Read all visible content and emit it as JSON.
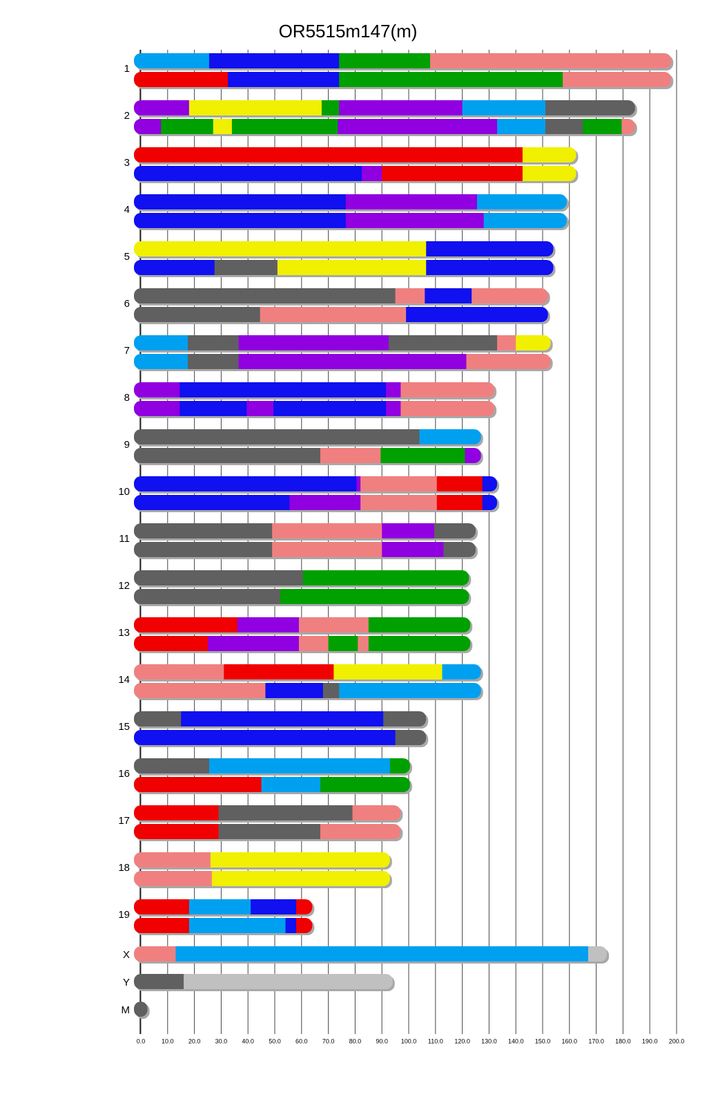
{
  "chart_data": {
    "type": "ideogram",
    "title": "OR5515m147(m)",
    "xlim": [
      0,
      200
    ],
    "xticks": [
      {
        "value": 0,
        "label": "0.0"
      },
      {
        "value": 10,
        "label": "10.0"
      },
      {
        "value": 20,
        "label": "20.0"
      },
      {
        "value": 30,
        "label": "30.0"
      },
      {
        "value": 40,
        "label": "40.0"
      },
      {
        "value": 50,
        "label": "50.0"
      },
      {
        "value": 60,
        "label": "60.0"
      },
      {
        "value": 70,
        "label": "70.0"
      },
      {
        "value": 80,
        "label": "80.0"
      },
      {
        "value": 90,
        "label": "90.0"
      },
      {
        "value": 100,
        "label": "100.0"
      },
      {
        "value": 110,
        "label": "110.0"
      },
      {
        "value": 120,
        "label": "120.0"
      },
      {
        "value": 130,
        "label": "130.0"
      },
      {
        "value": 140,
        "label": "140.0"
      },
      {
        "value": 150,
        "label": "150.0"
      },
      {
        "value": 160,
        "label": "160.0"
      },
      {
        "value": 170,
        "label": "170.0"
      },
      {
        "value": 180,
        "label": "180.0"
      },
      {
        "value": 190,
        "label": "190.0"
      },
      {
        "value": 200,
        "label": "200.0"
      }
    ],
    "grid": true,
    "chromosomes": [
      {
        "name": "1",
        "tracks": [
          [
            {
              "color": "#00a0f0",
              "length": 25.5
            },
            {
              "color": "#1010f0",
              "length": 48.5
            },
            {
              "color": "#00a000",
              "length": 34
            },
            {
              "color": "#f08080",
              "length": 90
            }
          ],
          [
            {
              "color": "#f00000",
              "length": 32.5
            },
            {
              "color": "#1010f0",
              "length": 41.5
            },
            {
              "color": "#00a000",
              "length": 83.5
            },
            {
              "color": "#f08080",
              "length": 40.5
            }
          ]
        ]
      },
      {
        "name": "2",
        "tracks": [
          [
            {
              "color": "#9000e0",
              "length": 18
            },
            {
              "color": "#f0f000",
              "length": 49.5
            },
            {
              "color": "#00a000",
              "length": 6.5
            },
            {
              "color": "#9000e0",
              "length": 46
            },
            {
              "color": "#00a0f0",
              "length": 31
            },
            {
              "color": "#606060",
              "length": 33.5
            }
          ],
          [
            {
              "color": "#9000e0",
              "length": 7.5
            },
            {
              "color": "#00a000",
              "length": 19.5
            },
            {
              "color": "#f0f000",
              "length": 7
            },
            {
              "color": "#00a000",
              "length": 39.5
            },
            {
              "color": "#9000e0",
              "length": 59.5
            },
            {
              "color": "#00a0f0",
              "length": 18
            },
            {
              "color": "#606060",
              "length": 14
            },
            {
              "color": "#00a000",
              "length": 14.5
            },
            {
              "color": "#f08080",
              "length": 5
            }
          ]
        ]
      },
      {
        "name": "3",
        "tracks": [
          [
            {
              "color": "#f00000",
              "length": 142.5
            },
            {
              "color": "#f0f000",
              "length": 20
            }
          ],
          [
            {
              "color": "#1010f0",
              "length": 82.5
            },
            {
              "color": "#9000e0",
              "length": 7.5
            },
            {
              "color": "#f00000",
              "length": 52.5
            },
            {
              "color": "#f0f000",
              "length": 20
            }
          ]
        ]
      },
      {
        "name": "4",
        "tracks": [
          [
            {
              "color": "#1010f0",
              "length": 76.5
            },
            {
              "color": "#9000e0",
              "length": 49
            },
            {
              "color": "#00a0f0",
              "length": 33.5
            }
          ],
          [
            {
              "color": "#1010f0",
              "length": 76.5
            },
            {
              "color": "#9000e0",
              "length": 51.5
            },
            {
              "color": "#00a0f0",
              "length": 31
            }
          ]
        ]
      },
      {
        "name": "5",
        "tracks": [
          [
            {
              "color": "#f0f000",
              "length": 106.5
            },
            {
              "color": "#1010f0",
              "length": 47.5
            }
          ],
          [
            {
              "color": "#1010f0",
              "length": 27.5
            },
            {
              "color": "#606060",
              "length": 23.5
            },
            {
              "color": "#f0f000",
              "length": 55.5
            },
            {
              "color": "#1010f0",
              "length": 47.5
            }
          ]
        ]
      },
      {
        "name": "6",
        "tracks": [
          [
            {
              "color": "#606060",
              "length": 95
            },
            {
              "color": "#f08080",
              "length": 11
            },
            {
              "color": "#1010f0",
              "length": 17.5
            },
            {
              "color": "#f08080",
              "length": 28.5
            }
          ],
          [
            {
              "color": "#606060",
              "length": 44.5
            },
            {
              "color": "#f08080",
              "length": 54.5
            },
            {
              "color": "#1010f0",
              "length": 53
            }
          ]
        ]
      },
      {
        "name": "7",
        "tracks": [
          [
            {
              "color": "#00a0f0",
              "length": 17.5
            },
            {
              "color": "#606060",
              "length": 19
            },
            {
              "color": "#9000e0",
              "length": 56
            },
            {
              "color": "#606060",
              "length": 40.5
            },
            {
              "color": "#f08080",
              "length": 7
            },
            {
              "color": "#f0f000",
              "length": 13
            }
          ],
          [
            {
              "color": "#00a0f0",
              "length": 17.5
            },
            {
              "color": "#606060",
              "length": 19
            },
            {
              "color": "#9000e0",
              "length": 85
            },
            {
              "color": "#f08080",
              "length": 31.5
            }
          ]
        ]
      },
      {
        "name": "8",
        "tracks": [
          [
            {
              "color": "#9000e0",
              "length": 14.5
            },
            {
              "color": "#1010f0",
              "length": 77
            },
            {
              "color": "#9000e0",
              "length": 5.5
            },
            {
              "color": "#f08080",
              "length": 35
            }
          ],
          [
            {
              "color": "#9000e0",
              "length": 14.5
            },
            {
              "color": "#1010f0",
              "length": 25
            },
            {
              "color": "#9000e0",
              "length": 10
            },
            {
              "color": "#1010f0",
              "length": 42
            },
            {
              "color": "#9000e0",
              "length": 5.5
            },
            {
              "color": "#f08080",
              "length": 35
            }
          ]
        ]
      },
      {
        "name": "9",
        "tracks": [
          [
            {
              "color": "#606060",
              "length": 104
            },
            {
              "color": "#00a0f0",
              "length": 23
            }
          ],
          [
            {
              "color": "#606060",
              "length": 67
            },
            {
              "color": "#f08080",
              "length": 22.5
            },
            {
              "color": "#00a000",
              "length": 31.5
            },
            {
              "color": "#9000e0",
              "length": 6
            }
          ]
        ]
      },
      {
        "name": "10",
        "tracks": [
          [
            {
              "color": "#1010f0",
              "length": 80.5
            },
            {
              "color": "#9000e0",
              "length": 1.5
            },
            {
              "color": "#f08080",
              "length": 28.5
            },
            {
              "color": "#f00000",
              "length": 17
            },
            {
              "color": "#1010f0",
              "length": 5.5
            }
          ],
          [
            {
              "color": "#1010f0",
              "length": 55.5
            },
            {
              "color": "#9000e0",
              "length": 26.5
            },
            {
              "color": "#f08080",
              "length": 28.5
            },
            {
              "color": "#f00000",
              "length": 17
            },
            {
              "color": "#1010f0",
              "length": 5.5
            }
          ]
        ]
      },
      {
        "name": "11",
        "tracks": [
          [
            {
              "color": "#606060",
              "length": 49
            },
            {
              "color": "#f08080",
              "length": 41
            },
            {
              "color": "#9000e0",
              "length": 19.5
            },
            {
              "color": "#606060",
              "length": 15.5
            }
          ],
          [
            {
              "color": "#606060",
              "length": 49
            },
            {
              "color": "#f08080",
              "length": 41
            },
            {
              "color": "#9000e0",
              "length": 23
            },
            {
              "color": "#606060",
              "length": 12
            }
          ]
        ]
      },
      {
        "name": "12",
        "tracks": [
          [
            {
              "color": "#606060",
              "length": 60.5
            },
            {
              "color": "#00a000",
              "length": 62
            }
          ],
          [
            {
              "color": "#606060",
              "length": 52
            },
            {
              "color": "#00a000",
              "length": 70.5
            }
          ]
        ]
      },
      {
        "name": "13",
        "tracks": [
          [
            {
              "color": "#f00000",
              "length": 36
            },
            {
              "color": "#9000e0",
              "length": 23
            },
            {
              "color": "#f08080",
              "length": 26
            },
            {
              "color": "#00a000",
              "length": 38
            }
          ],
          [
            {
              "color": "#f00000",
              "length": 25
            },
            {
              "color": "#9000e0",
              "length": 34
            },
            {
              "color": "#f08080",
              "length": 11
            },
            {
              "color": "#00a000",
              "length": 11
            },
            {
              "color": "#f08080",
              "length": 4
            },
            {
              "color": "#00a000",
              "length": 38
            }
          ]
        ]
      },
      {
        "name": "14",
        "tracks": [
          [
            {
              "color": "#f08080",
              "length": 31
            },
            {
              "color": "#f00000",
              "length": 41
            },
            {
              "color": "#f0f000",
              "length": 40.5
            },
            {
              "color": "#00a0f0",
              "length": 14.5
            }
          ],
          [
            {
              "color": "#f08080",
              "length": 46.5
            },
            {
              "color": "#1010f0",
              "length": 21.5
            },
            {
              "color": "#606060",
              "length": 6
            },
            {
              "color": "#00a0f0",
              "length": 53
            }
          ]
        ]
      },
      {
        "name": "15",
        "tracks": [
          [
            {
              "color": "#606060",
              "length": 15
            },
            {
              "color": "#1010f0",
              "length": 75.5
            },
            {
              "color": "#606060",
              "length": 16
            }
          ],
          [
            {
              "color": "#1010f0",
              "length": 95
            },
            {
              "color": "#606060",
              "length": 11.5
            }
          ]
        ]
      },
      {
        "name": "16",
        "tracks": [
          [
            {
              "color": "#606060",
              "length": 25.5
            },
            {
              "color": "#00a0f0",
              "length": 67.5
            },
            {
              "color": "#00a000",
              "length": 7.5
            }
          ],
          [
            {
              "color": "#f00000",
              "length": 45
            },
            {
              "color": "#00a0f0",
              "length": 22
            },
            {
              "color": "#00a000",
              "length": 33.5
            }
          ]
        ]
      },
      {
        "name": "17",
        "tracks": [
          [
            {
              "color": "#f00000",
              "length": 29
            },
            {
              "color": "#606060",
              "length": 50
            },
            {
              "color": "#f08080",
              "length": 18
            }
          ],
          [
            {
              "color": "#f00000",
              "length": 29
            },
            {
              "color": "#606060",
              "length": 38
            },
            {
              "color": "#f08080",
              "length": 30
            }
          ]
        ]
      },
      {
        "name": "18",
        "tracks": [
          [
            {
              "color": "#f08080",
              "length": 26
            },
            {
              "color": "#f0f000",
              "length": 67
            }
          ],
          [
            {
              "color": "#f08080",
              "length": 26.5
            },
            {
              "color": "#f0f000",
              "length": 66.5
            }
          ]
        ]
      },
      {
        "name": "19",
        "tracks": [
          [
            {
              "color": "#f00000",
              "length": 18
            },
            {
              "color": "#00a0f0",
              "length": 23
            },
            {
              "color": "#1010f0",
              "length": 17
            },
            {
              "color": "#f00000",
              "length": 6
            }
          ],
          [
            {
              "color": "#f00000",
              "length": 18
            },
            {
              "color": "#00a0f0",
              "length": 36
            },
            {
              "color": "#1010f0",
              "length": 4
            },
            {
              "color": "#f00000",
              "length": 6
            }
          ]
        ]
      },
      {
        "name": "X",
        "tracks": [
          [
            {
              "color": "#f08080",
              "length": 13
            },
            {
              "color": "#00a0f0",
              "length": 154
            },
            {
              "color": "#c0c0c0",
              "length": 7
            }
          ]
        ]
      },
      {
        "name": "Y",
        "tracks": [
          [
            {
              "color": "#606060",
              "length": 16
            },
            {
              "color": "#c0c0c0",
              "length": 78
            }
          ]
        ]
      },
      {
        "name": "M",
        "tracks": [
          [
            {
              "color": "#606060",
              "length": 2.5
            }
          ]
        ]
      }
    ]
  }
}
